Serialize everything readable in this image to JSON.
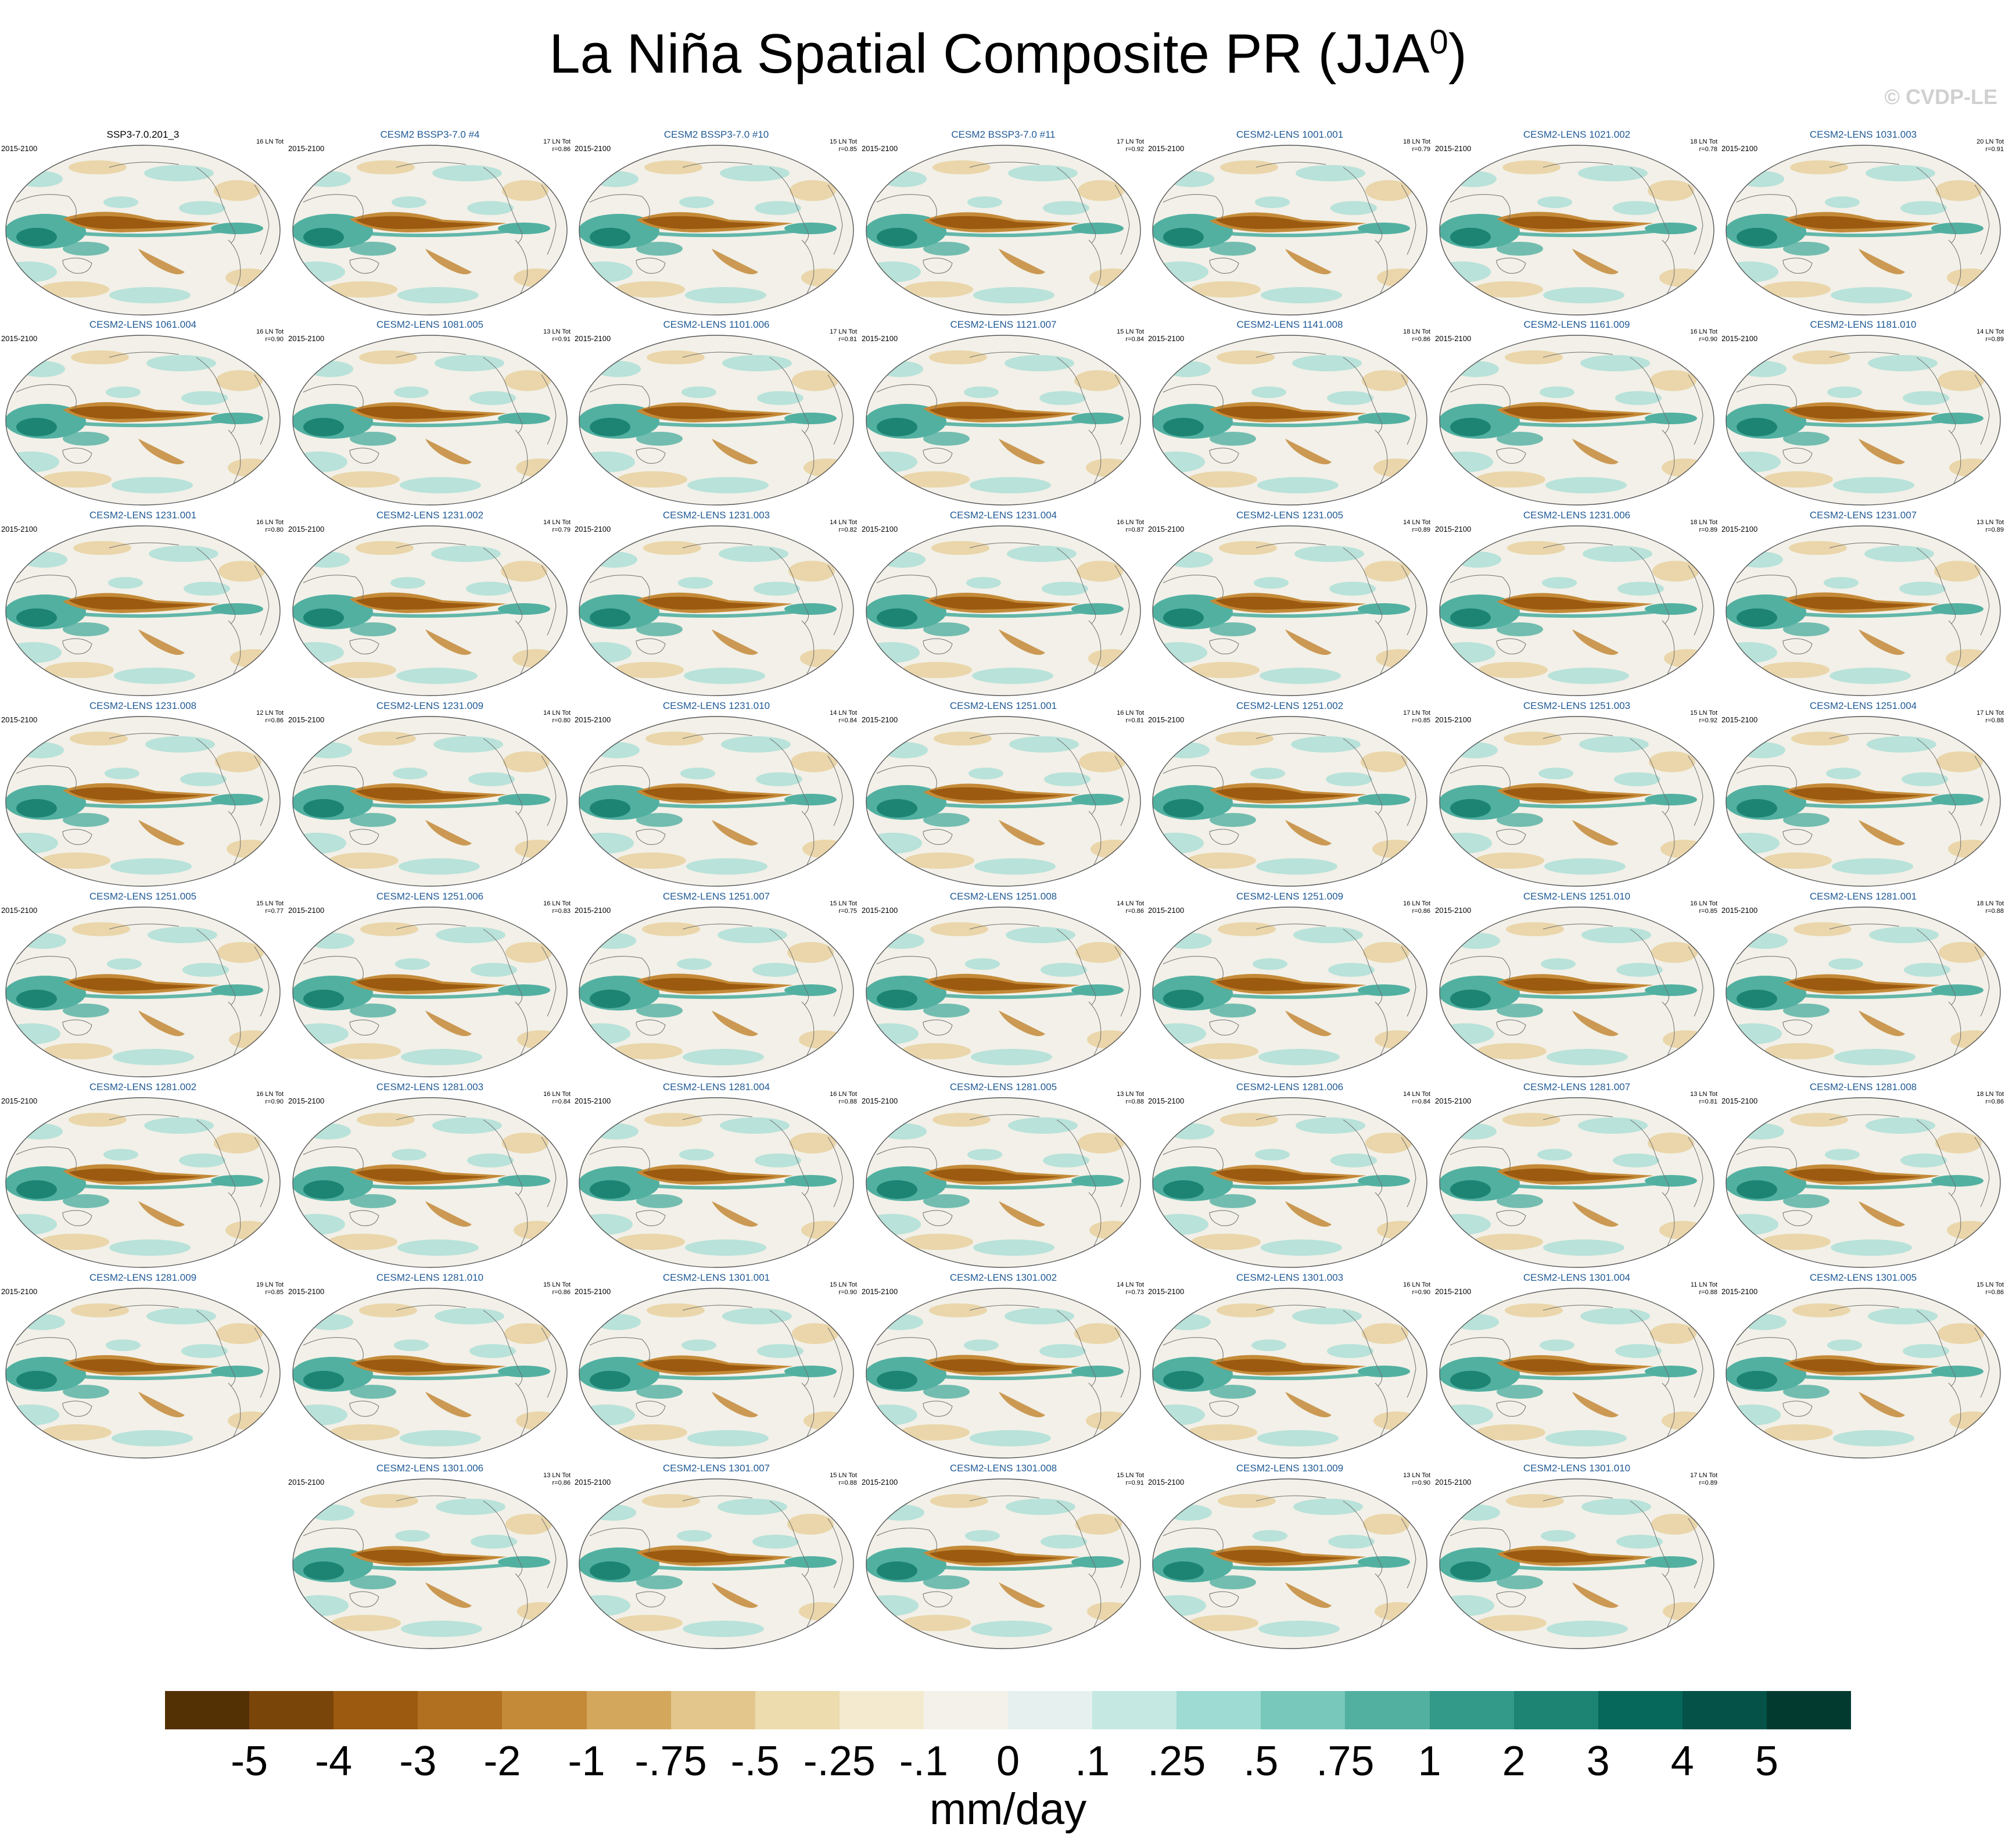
{
  "title": "La Niña Spatial Composite PR (JJA",
  "title_superscript": "0",
  "title_close": ")",
  "credit": "© CVDP-LE",
  "period": "2015-2100",
  "panels": [
    {
      "name": "SSP3-7.0.201_3",
      "stat1": "16 LN Tot",
      "stat2": "",
      "obs": true
    },
    {
      "name": "CESM2 BSSP3-7.0 #4",
      "stat1": "17 LN Tot",
      "stat2": "r=0.86"
    },
    {
      "name": "CESM2 BSSP3-7.0 #10",
      "stat1": "15 LN Tot",
      "stat2": "r=0.85"
    },
    {
      "name": "CESM2 BSSP3-7.0 #11",
      "stat1": "17 LN Tot",
      "stat2": "r=0.92"
    },
    {
      "name": "CESM2-LENS 1001.001",
      "stat1": "18 LN Tot",
      "stat2": "r=0.79"
    },
    {
      "name": "CESM2-LENS 1021.002",
      "stat1": "18 LN Tot",
      "stat2": "r=0.78"
    },
    {
      "name": "CESM2-LENS 1031.003",
      "stat1": "20 LN Tot",
      "stat2": "r=0.91"
    },
    {
      "name": "CESM2-LENS 1061.004",
      "stat1": "16 LN Tot",
      "stat2": "r=0.90"
    },
    {
      "name": "CESM2-LENS 1081.005",
      "stat1": "13 LN Tot",
      "stat2": "r=0.91"
    },
    {
      "name": "CESM2-LENS 1101.006",
      "stat1": "17 LN Tot",
      "stat2": "r=0.81"
    },
    {
      "name": "CESM2-LENS 1121.007",
      "stat1": "15 LN Tot",
      "stat2": "r=0.84"
    },
    {
      "name": "CESM2-LENS 1141.008",
      "stat1": "18 LN Tot",
      "stat2": "r=0.86"
    },
    {
      "name": "CESM2-LENS 1161.009",
      "stat1": "16 LN Tot",
      "stat2": "r=0.90"
    },
    {
      "name": "CESM2-LENS 1181.010",
      "stat1": "14 LN Tot",
      "stat2": "r=0.89"
    },
    {
      "name": "CESM2-LENS 1231.001",
      "stat1": "16 LN Tot",
      "stat2": "r=0.80"
    },
    {
      "name": "CESM2-LENS 1231.002",
      "stat1": "14 LN Tot",
      "stat2": "r=0.79"
    },
    {
      "name": "CESM2-LENS 1231.003",
      "stat1": "14 LN Tot",
      "stat2": "r=0.82"
    },
    {
      "name": "CESM2-LENS 1231.004",
      "stat1": "16 LN Tot",
      "stat2": "r=0.87"
    },
    {
      "name": "CESM2-LENS 1231.005",
      "stat1": "14 LN Tot",
      "stat2": "r=0.89"
    },
    {
      "name": "CESM2-LENS 1231.006",
      "stat1": "18 LN Tot",
      "stat2": "r=0.89"
    },
    {
      "name": "CESM2-LENS 1231.007",
      "stat1": "13 LN Tot",
      "stat2": "r=0.89"
    },
    {
      "name": "CESM2-LENS 1231.008",
      "stat1": "12 LN Tot",
      "stat2": "r=0.86"
    },
    {
      "name": "CESM2-LENS 1231.009",
      "stat1": "14 LN Tot",
      "stat2": "r=0.80"
    },
    {
      "name": "CESM2-LENS 1231.010",
      "stat1": "14 LN Tot",
      "stat2": "r=0.84"
    },
    {
      "name": "CESM2-LENS 1251.001",
      "stat1": "16 LN Tot",
      "stat2": "r=0.81"
    },
    {
      "name": "CESM2-LENS 1251.002",
      "stat1": "17 LN Tot",
      "stat2": "r=0.85"
    },
    {
      "name": "CESM2-LENS 1251.003",
      "stat1": "15 LN Tot",
      "stat2": "r=0.92"
    },
    {
      "name": "CESM2-LENS 1251.004",
      "stat1": "17 LN Tot",
      "stat2": "r=0.88"
    },
    {
      "name": "CESM2-LENS 1251.005",
      "stat1": "15 LN Tot",
      "stat2": "r=0.77"
    },
    {
      "name": "CESM2-LENS 1251.006",
      "stat1": "16 LN Tot",
      "stat2": "r=0.83"
    },
    {
      "name": "CESM2-LENS 1251.007",
      "stat1": "15 LN Tot",
      "stat2": "r=0.75"
    },
    {
      "name": "CESM2-LENS 1251.008",
      "stat1": "14 LN Tot",
      "stat2": "r=0.86"
    },
    {
      "name": "CESM2-LENS 1251.009",
      "stat1": "16 LN Tot",
      "stat2": "r=0.86"
    },
    {
      "name": "CESM2-LENS 1251.010",
      "stat1": "16 LN Tot",
      "stat2": "r=0.85"
    },
    {
      "name": "CESM2-LENS 1281.001",
      "stat1": "18 LN Tot",
      "stat2": "r=0.88"
    },
    {
      "name": "CESM2-LENS 1281.002",
      "stat1": "16 LN Tot",
      "stat2": "r=0.90"
    },
    {
      "name": "CESM2-LENS 1281.003",
      "stat1": "16 LN Tot",
      "stat2": "r=0.84"
    },
    {
      "name": "CESM2-LENS 1281.004",
      "stat1": "16 LN Tot",
      "stat2": "r=0.88"
    },
    {
      "name": "CESM2-LENS 1281.005",
      "stat1": "13 LN Tot",
      "stat2": "r=0.88"
    },
    {
      "name": "CESM2-LENS 1281.006",
      "stat1": "14 LN Tot",
      "stat2": "r=0.84"
    },
    {
      "name": "CESM2-LENS 1281.007",
      "stat1": "13 LN Tot",
      "stat2": "r=0.81"
    },
    {
      "name": "CESM2-LENS 1281.008",
      "stat1": "18 LN Tot",
      "stat2": "r=0.86"
    },
    {
      "name": "CESM2-LENS 1281.009",
      "stat1": "19 LN Tot",
      "stat2": "r=0.85"
    },
    {
      "name": "CESM2-LENS 1281.010",
      "stat1": "15 LN Tot",
      "stat2": "r=0.86"
    },
    {
      "name": "CESM2-LENS 1301.001",
      "stat1": "15 LN Tot",
      "stat2": "r=0.90"
    },
    {
      "name": "CESM2-LENS 1301.002",
      "stat1": "14 LN Tot",
      "stat2": "r=0.73"
    },
    {
      "name": "CESM2-LENS 1301.003",
      "stat1": "16 LN Tot",
      "stat2": "r=0.90"
    },
    {
      "name": "CESM2-LENS 1301.004",
      "stat1": "11 LN Tot",
      "stat2": "r=0.88"
    },
    {
      "name": "CESM2-LENS 1301.005",
      "stat1": "15 LN Tot",
      "stat2": "r=0.86"
    },
    {
      "name": "CESM2-LENS 1301.006",
      "stat1": "13 LN Tot",
      "stat2": "r=0.86"
    },
    {
      "name": "CESM2-LENS 1301.007",
      "stat1": "15 LN Tot",
      "stat2": "r=0.88"
    },
    {
      "name": "CESM2-LENS 1301.008",
      "stat1": "15 LN Tot",
      "stat2": "r=0.91"
    },
    {
      "name": "CESM2-LENS 1301.009",
      "stat1": "13 LN Tot",
      "stat2": "r=0.90"
    },
    {
      "name": "CESM2-LENS 1301.010",
      "stat1": "17 LN Tot",
      "stat2": "r=0.89"
    }
  ],
  "colorbar": {
    "units": "mm/day",
    "colors": [
      "#543005",
      "#7a4509",
      "#9b5a0f",
      "#b07020",
      "#c48a38",
      "#d3a85d",
      "#e2c68c",
      "#ecdcae",
      "#f3ead0",
      "#f3f1ea",
      "#e6f1ef",
      "#c6e8e2",
      "#9edbd2",
      "#78c8bb",
      "#52b0a1",
      "#339a8a",
      "#1d8474",
      "#06685a",
      "#045248",
      "#023a30"
    ],
    "labels": [
      "-5",
      "-4",
      "-3",
      "-2",
      "-1",
      "-.75",
      "-.5",
      "-.25",
      "-.1",
      "0",
      ".1",
      ".25",
      ".5",
      ".75",
      "1",
      "2",
      "3",
      "4",
      "5"
    ]
  },
  "map_colors": {
    "dry_strong": "#9b5a0f",
    "dry_mid": "#c48a38",
    "dry_weak": "#e7cf9a",
    "wet_weak": "#a9ded6",
    "wet_mid": "#52b0a1",
    "wet_strong": "#1d8474",
    "neutral": "#f2f0e8",
    "coast": "#6e6e6e"
  }
}
